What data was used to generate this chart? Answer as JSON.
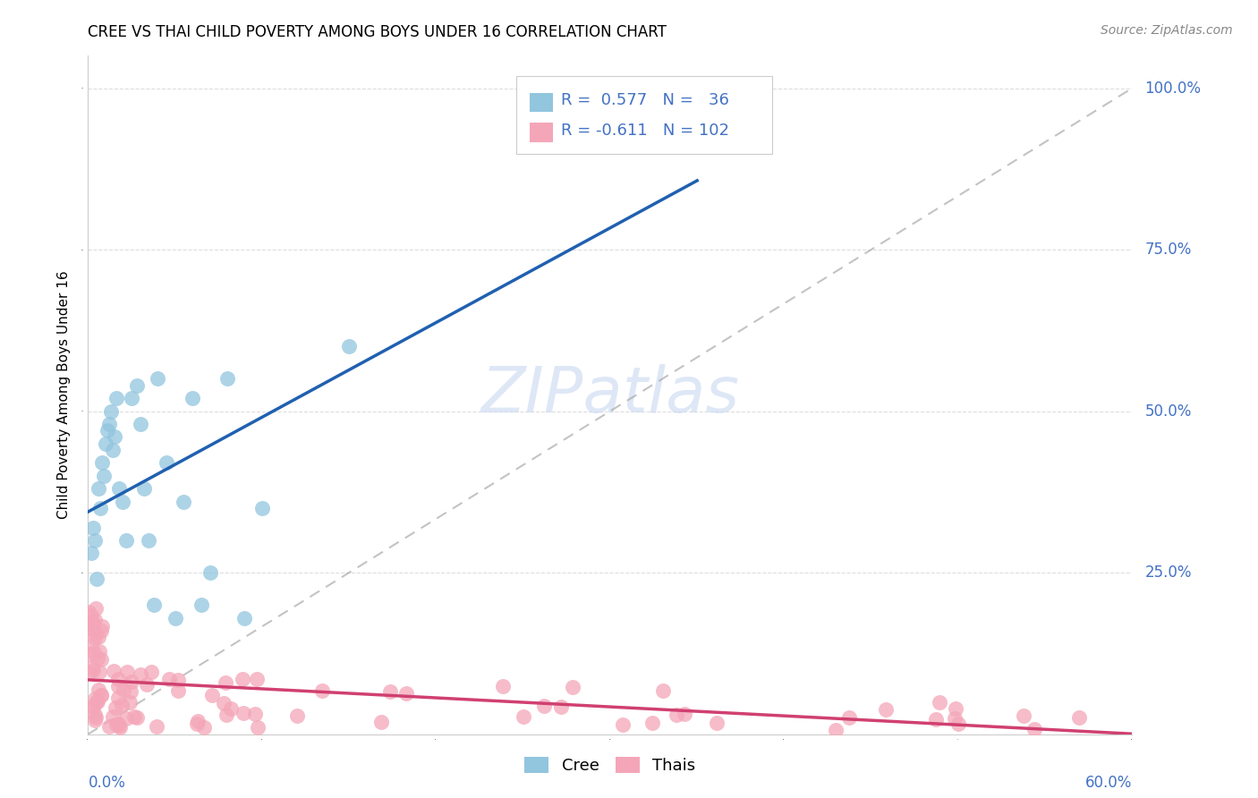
{
  "title": "CREE VS THAI CHILD POVERTY AMONG BOYS UNDER 16 CORRELATION CHART",
  "source": "Source: ZipAtlas.com",
  "ylabel": "Child Poverty Among Boys Under 16",
  "xlim": [
    0.0,
    0.6
  ],
  "ylim": [
    0.0,
    1.05
  ],
  "cree_R": 0.577,
  "cree_N": 36,
  "thai_R": -0.611,
  "thai_N": 102,
  "cree_color": "#92C5DE",
  "thai_color": "#F4A6B8",
  "cree_line_color": "#2060B0",
  "thai_line_color": "#D04070",
  "legend_text_color": "#4472C4",
  "ytick_color": "#4472C4",
  "xtick_color": "#4472C4",
  "watermark_color": "#C8D8F0",
  "grid_color": "#DDDDDD",
  "title_fontsize": 12,
  "axis_label_fontsize": 11,
  "tick_fontsize": 12,
  "legend_fontsize": 13
}
